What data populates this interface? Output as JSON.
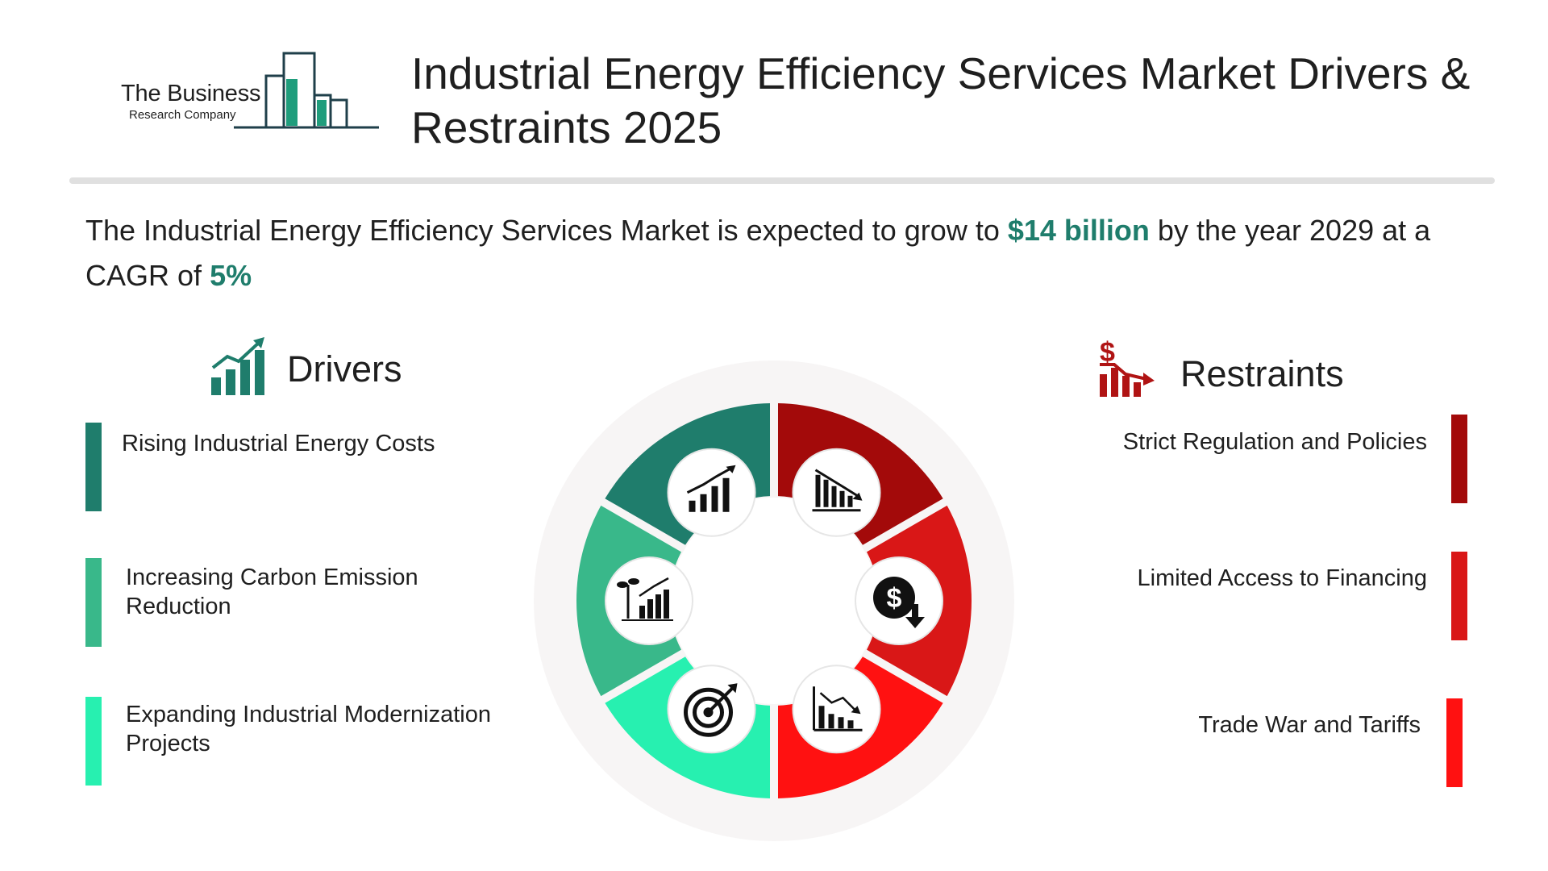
{
  "logo": {
    "line1": "The Business",
    "line2": "Research Company",
    "brand_color": "#1f7d6c"
  },
  "title": "Industrial Energy Efficiency Services Market Drivers & Restraints 2025",
  "summary": {
    "prefix": "The Industrial Energy Efficiency Services Market is expected to grow to",
    "value": "$14 billion",
    "middle": "by the year 2029 at a CAGR of",
    "cagr": "5%",
    "highlight_color": "#1f7d6c"
  },
  "drivers": {
    "title": "Drivers",
    "icon": "growth-chart-icon",
    "items": [
      {
        "label": "Rising Industrial Energy Costs",
        "color": "#1f7d6c",
        "icon": "growth-chart-icon"
      },
      {
        "label": "Increasing Carbon Emission Reduction",
        "color": "#39b88a",
        "icon": "plant-growth-chart-icon"
      },
      {
        "label": "Expanding Industrial Modernization Projects",
        "color": "#27f0b0",
        "icon": "target-icon"
      }
    ]
  },
  "restraints": {
    "title": "Restraints",
    "icon": "dollar-decline-icon",
    "items": [
      {
        "label": "Strict Regulation and Policies",
        "color": "#a30a0a",
        "icon": "declining-bars-icon"
      },
      {
        "label": "Limited Access to Financing",
        "color": "#d91717",
        "icon": "dollar-down-icon"
      },
      {
        "label": "Trade War and Tariffs",
        "color": "#ff1111",
        "icon": "declining-chart-icon"
      }
    ]
  }
}
